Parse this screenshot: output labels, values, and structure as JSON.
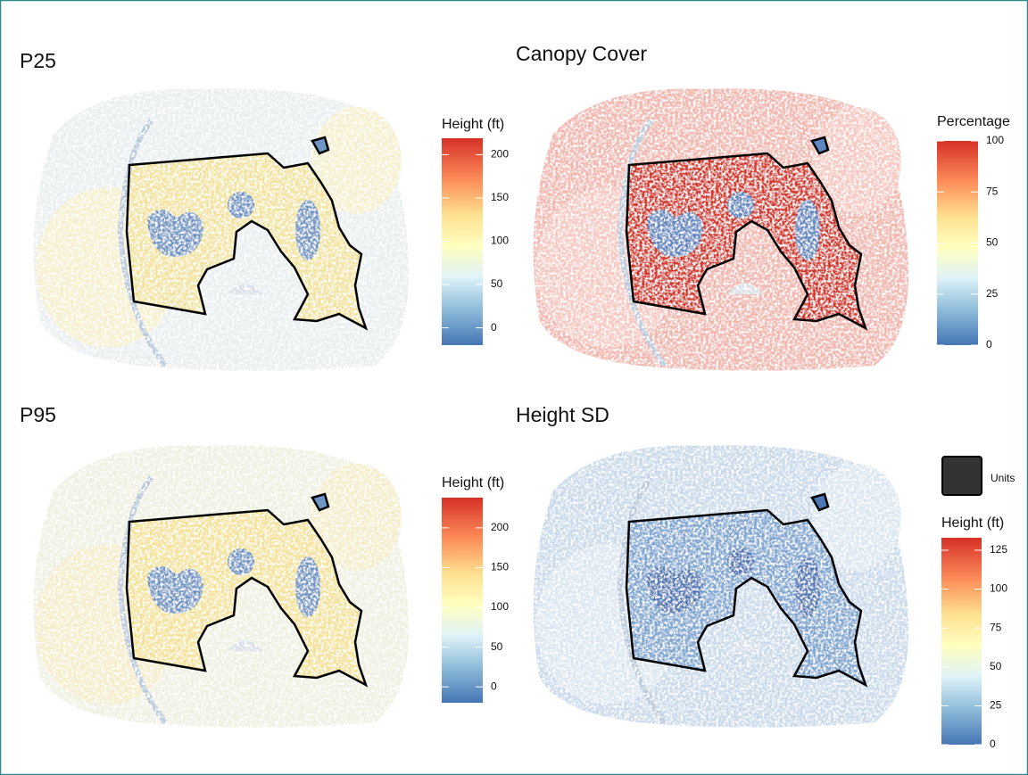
{
  "panels": [
    {
      "title": "P25",
      "legend": {
        "title": "Height (ft)",
        "lim": [
          -20,
          219
        ],
        "ticks": [
          0,
          50,
          100,
          150,
          200
        ]
      }
    },
    {
      "title": "Canopy Cover",
      "legend": {
        "title": "Percentage",
        "lim": [
          0,
          100
        ],
        "ticks": [
          0,
          25,
          50,
          75,
          100
        ]
      }
    },
    {
      "title": "P95",
      "legend": {
        "title": "Height (ft)",
        "lim": [
          -20,
          238
        ],
        "ticks": [
          0,
          50,
          100,
          150,
          200
        ]
      }
    },
    {
      "title": "Height SD",
      "units_key": "Units",
      "legend": {
        "title": "Height (ft)",
        "lim": [
          0,
          133
        ],
        "ticks": [
          0,
          25,
          50,
          75,
          100,
          125
        ]
      }
    }
  ]
}
